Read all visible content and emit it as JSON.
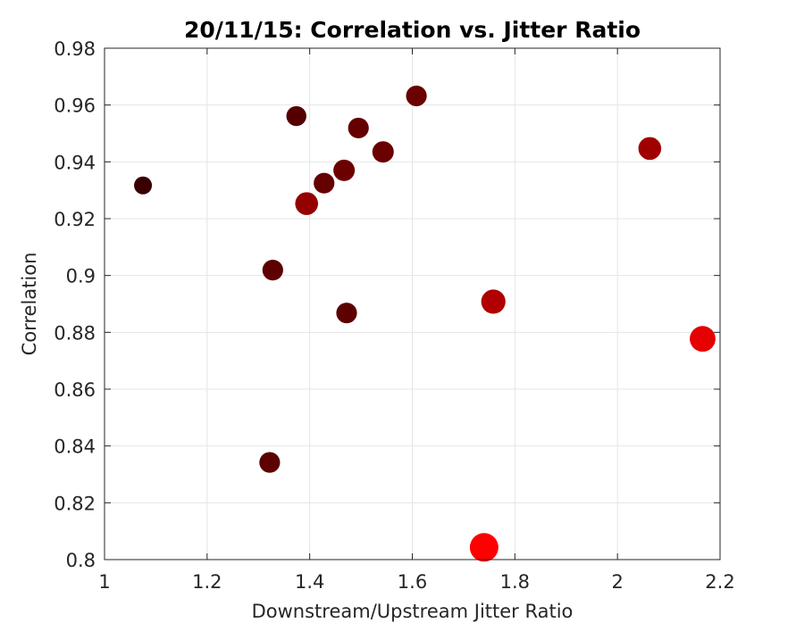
{
  "chart_data": {
    "type": "scatter",
    "title": "20/11/15: Correlation vs. Jitter Ratio",
    "xlabel": "Downstream/Upstream Jitter Ratio",
    "ylabel": "Correlation",
    "xlim": [
      1,
      2.2
    ],
    "ylim": [
      0.8,
      0.98
    ],
    "xticks": [
      1,
      1.2,
      1.4,
      1.6,
      1.8,
      2,
      2.2
    ],
    "xtick_labels": [
      "1",
      "1.2",
      "1.4",
      "1.6",
      "1.8",
      "2",
      "2.2"
    ],
    "yticks": [
      0.8,
      0.82,
      0.84,
      0.86,
      0.88,
      0.9,
      0.92,
      0.94,
      0.96,
      0.98
    ],
    "ytick_labels": [
      "0.8",
      "0.82",
      "0.84",
      "0.86",
      "0.88",
      "0.9",
      "0.92",
      "0.94",
      "0.96",
      "0.98"
    ],
    "grid": true,
    "points": [
      {
        "x": 1.075,
        "y": 0.9317,
        "size": 0.25,
        "color": "#3a0000"
      },
      {
        "x": 1.322,
        "y": 0.8342,
        "size": 0.45,
        "color": "#5c0000"
      },
      {
        "x": 1.328,
        "y": 0.9019,
        "size": 0.45,
        "color": "#5c0000"
      },
      {
        "x": 1.374,
        "y": 0.9561,
        "size": 0.4,
        "color": "#550000"
      },
      {
        "x": 1.394,
        "y": 0.9253,
        "size": 0.6,
        "color": "#950000"
      },
      {
        "x": 1.428,
        "y": 0.9325,
        "size": 0.45,
        "color": "#640000"
      },
      {
        "x": 1.467,
        "y": 0.937,
        "size": 0.5,
        "color": "#6c0000"
      },
      {
        "x": 1.472,
        "y": 0.8868,
        "size": 0.45,
        "color": "#5c0000"
      },
      {
        "x": 1.495,
        "y": 0.9519,
        "size": 0.45,
        "color": "#640000"
      },
      {
        "x": 1.543,
        "y": 0.9435,
        "size": 0.5,
        "color": "#6a0000"
      },
      {
        "x": 1.608,
        "y": 0.9632,
        "size": 0.45,
        "color": "#6a0000"
      },
      {
        "x": 1.74,
        "y": 0.8043,
        "size": 1.0,
        "color": "#ff0000"
      },
      {
        "x": 1.758,
        "y": 0.8908,
        "size": 0.7,
        "color": "#b00000"
      },
      {
        "x": 2.063,
        "y": 0.9447,
        "size": 0.6,
        "color": "#a00000"
      },
      {
        "x": 2.166,
        "y": 0.8777,
        "size": 0.8,
        "color": "#e60000"
      }
    ]
  }
}
